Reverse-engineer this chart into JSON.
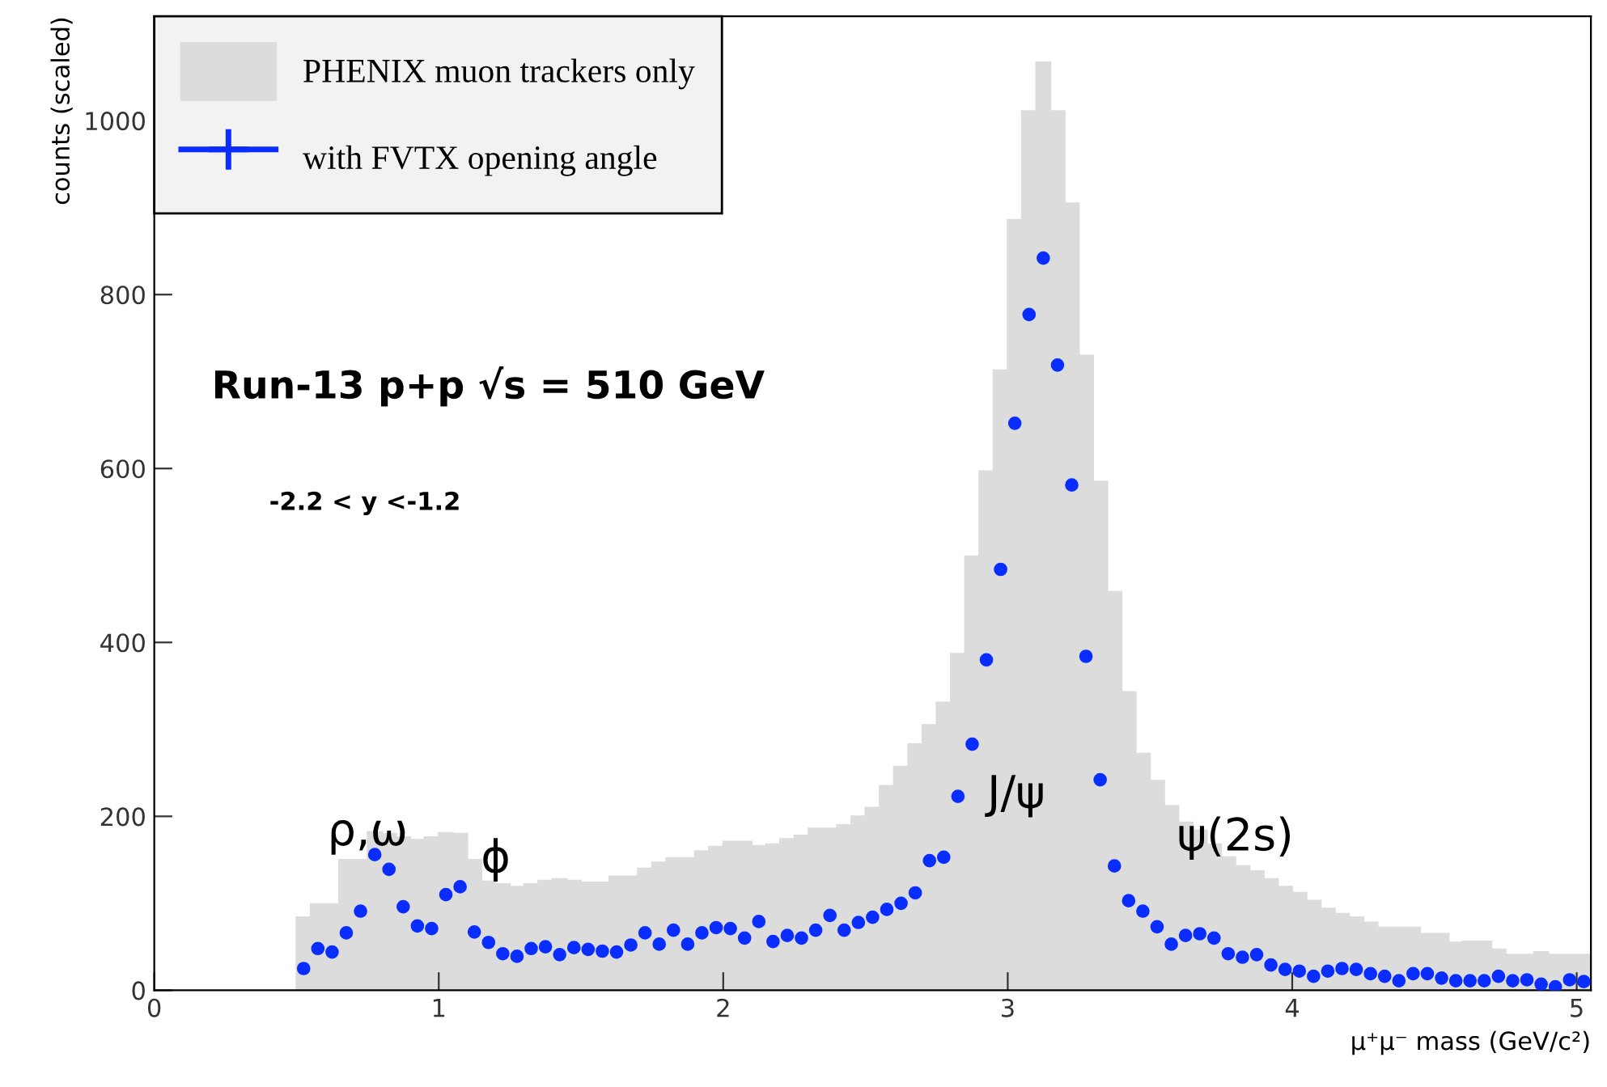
{
  "chart_data": {
    "type": "histogram",
    "xlabel": "μ⁺μ⁻ mass (GeV/c²)",
    "ylabel": "counts (scaled)",
    "xlim": [
      0,
      5.05
    ],
    "ylim": [
      0,
      1120
    ],
    "xticks": [
      0,
      1,
      2,
      3,
      4,
      5
    ],
    "yticks": [
      0,
      200,
      400,
      600,
      800,
      1000
    ],
    "grid": false,
    "legend": "top left",
    "marker": "circle",
    "bins": [
      0.5,
      0.55,
      0.6,
      0.65,
      0.7,
      0.75,
      0.8,
      0.85,
      0.9,
      0.95,
      1.0,
      1.05,
      1.1,
      1.15,
      1.2,
      1.25,
      1.3,
      1.35,
      1.4,
      1.45,
      1.5,
      1.55,
      1.6,
      1.65,
      1.7,
      1.75,
      1.8,
      1.85,
      1.9,
      1.95,
      2.0,
      2.05,
      2.1,
      2.15,
      2.2,
      2.25,
      2.3,
      2.35,
      2.4,
      2.45,
      2.5,
      2.55,
      2.6,
      2.65,
      2.7,
      2.75,
      2.8,
      2.85,
      2.9,
      2.95,
      3.0,
      3.05,
      3.1,
      3.15,
      3.2,
      3.25,
      3.3,
      3.35,
      3.4,
      3.45,
      3.5,
      3.55,
      3.6,
      3.65,
      3.7,
      3.75,
      3.8,
      3.85,
      3.9,
      3.95,
      4.0,
      4.05,
      4.1,
      4.15,
      4.2,
      4.25,
      4.3,
      4.35,
      4.4,
      4.45,
      4.5,
      4.55,
      4.6,
      4.65,
      4.7,
      4.75,
      4.8,
      4.85,
      4.9,
      4.95,
      5.0,
      5.05
    ],
    "series": [
      {
        "name": "PHENIX muon trackers only",
        "color": "#dcdcdc",
        "values": [
          84,
          99,
          99,
          150,
          150,
          182,
          180,
          176,
          173,
          176,
          181,
          180,
          150,
          125,
          122,
          119,
          122,
          126,
          128,
          126,
          124,
          124,
          131,
          131,
          140,
          147,
          152,
          152,
          160,
          165,
          171,
          171,
          166,
          168,
          174,
          178,
          186,
          186,
          190,
          200,
          210,
          235,
          257,
          283,
          305,
          331,
          387,
          499,
          597,
          713,
          886,
          1011,
          1067,
          1011,
          905,
          730,
          585,
          458,
          343,
          272,
          241,
          212,
          193,
          184,
          168,
          153,
          143,
          137,
          128,
          119,
          112,
          103,
          94,
          88,
          84,
          78,
          72,
          72,
          72,
          65,
          65,
          55,
          56,
          56,
          47,
          41,
          41,
          44,
          41,
          41,
          41
        ]
      },
      {
        "name": "with FVTX opening angle",
        "type": "scatter",
        "color": "#0a2dff",
        "x": [
          0.525,
          0.575,
          0.625,
          0.675,
          0.725,
          0.775,
          0.825,
          0.875,
          0.925,
          0.975,
          1.025,
          1.075,
          1.125,
          1.175,
          1.225,
          1.275,
          1.325,
          1.375,
          1.425,
          1.475,
          1.525,
          1.575,
          1.625,
          1.675,
          1.725,
          1.775,
          1.825,
          1.875,
          1.925,
          1.975,
          2.025,
          2.075,
          2.125,
          2.175,
          2.225,
          2.275,
          2.325,
          2.375,
          2.425,
          2.475,
          2.525,
          2.575,
          2.625,
          2.675,
          2.725,
          2.775,
          2.825,
          2.875,
          2.925,
          2.975,
          3.025,
          3.075,
          3.125,
          3.175,
          3.225,
          3.275,
          3.325,
          3.375,
          3.425,
          3.475,
          3.525,
          3.575,
          3.625,
          3.675,
          3.725,
          3.775,
          3.825,
          3.875,
          3.925,
          3.975,
          4.025,
          4.075,
          4.125,
          4.175,
          4.225,
          4.275,
          4.325,
          4.375,
          4.425,
          4.475,
          4.525,
          4.575,
          4.625,
          4.675,
          4.725,
          4.775,
          4.825,
          4.875,
          4.925,
          4.975,
          5.025
        ],
        "values": [
          25,
          48,
          44,
          66,
          91,
          156,
          139,
          96,
          74,
          71,
          110,
          119,
          67,
          55,
          42,
          39,
          48,
          50,
          41,
          49,
          47,
          45,
          44,
          52,
          66,
          53,
          69,
          53,
          66,
          72,
          71,
          60,
          79,
          56,
          63,
          60,
          69,
          86,
          69,
          78,
          84,
          93,
          100,
          112,
          149,
          153,
          223,
          283,
          380,
          484,
          652,
          777,
          842,
          719,
          581,
          384,
          242,
          143,
          103,
          91,
          73,
          53,
          63,
          65,
          60,
          42,
          38,
          41,
          29,
          24,
          22,
          16,
          22,
          25,
          24,
          19,
          16,
          11,
          19,
          19,
          14,
          11,
          11,
          11,
          16,
          11,
          12,
          7,
          4,
          12,
          10
        ]
      }
    ],
    "annotations": [
      "Run-13 p+p √s = 510 GeV",
      "-2.2 < y <-1.2",
      {
        "text": "ρ,ω",
        "x": 0.75,
        "y": 156
      },
      {
        "text": "ϕ",
        "x": 1.2,
        "y": 125
      },
      "J/ψ",
      {
        "text": "ψ(2s)",
        "x": 3.8,
        "y": 150
      }
    ]
  }
}
